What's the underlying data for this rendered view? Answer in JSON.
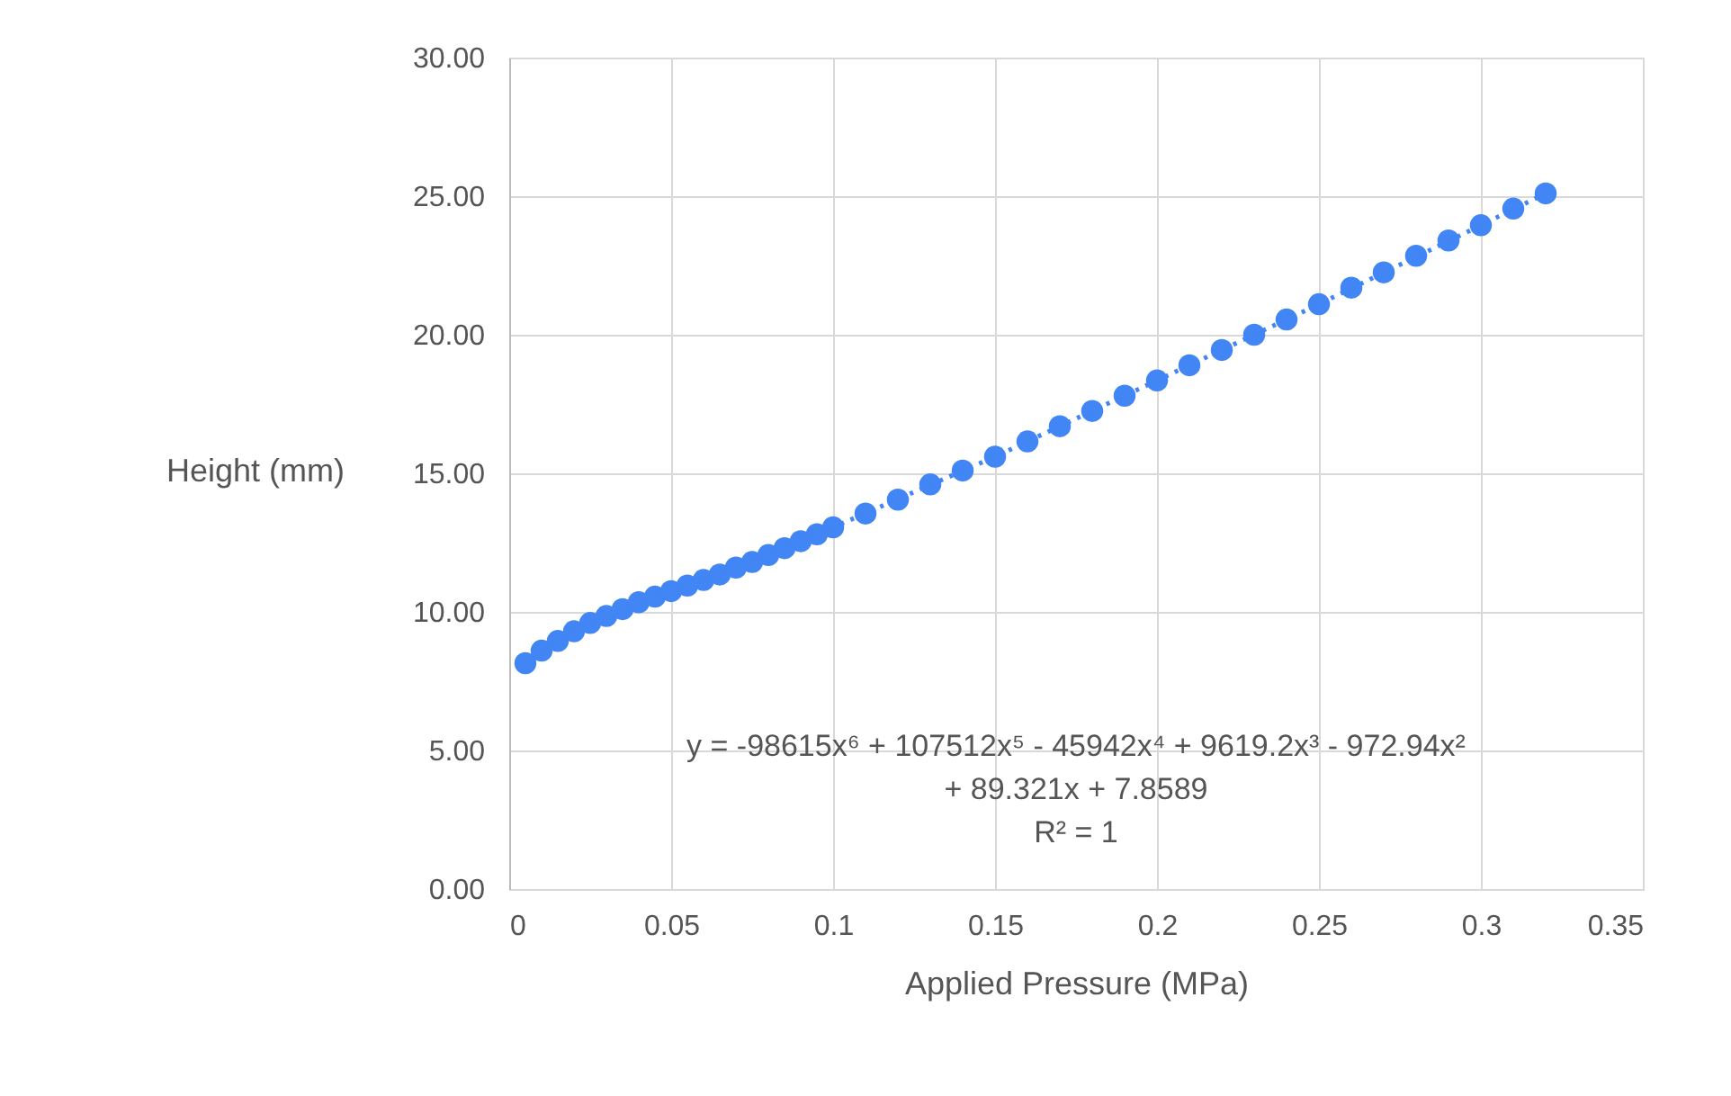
{
  "chart_data": {
    "type": "scatter",
    "xlabel": "Applied Pressure (MPa)",
    "ylabel": "Height (mm)",
    "xlim": [
      0,
      0.35
    ],
    "xticks": [
      0,
      0.05,
      0.1,
      0.15,
      0.2,
      0.25,
      0.3,
      0.35
    ],
    "ylim": [
      0,
      30
    ],
    "yticks": [
      {
        "value": 0,
        "label": "0.00"
      },
      {
        "value": 5,
        "label": "5.00"
      },
      {
        "value": 10,
        "label": "10.00"
      },
      {
        "value": 15,
        "label": "15.00"
      },
      {
        "value": 20,
        "label": "20.00"
      },
      {
        "value": 25,
        "label": "25.00"
      },
      {
        "value": 30,
        "label": "30.00"
      }
    ],
    "grid": true,
    "annotations": [
      "y = -98615x⁶ + 107512x⁵ - 45942x⁴ + 9619.2x³ - 972.94x²",
      "+ 89.321x + 7.8589",
      "R² = 1"
    ],
    "series": [
      {
        "marker": "circle",
        "color": "#4285f4",
        "x": [
          0.005,
          0.01,
          0.015,
          0.02,
          0.025,
          0.03,
          0.035,
          0.04,
          0.045,
          0.05,
          0.055,
          0.06,
          0.065,
          0.07,
          0.075,
          0.08,
          0.085,
          0.09,
          0.095,
          0.1,
          0.11,
          0.12,
          0.13,
          0.14,
          0.15,
          0.16,
          0.17,
          0.18,
          0.19,
          0.2,
          0.21,
          0.22,
          0.23,
          0.24,
          0.25,
          0.26,
          0.27,
          0.28,
          0.29,
          0.3,
          0.31,
          0.32
        ],
        "values": [
          8.15,
          8.6,
          8.95,
          9.3,
          9.6,
          9.85,
          10.1,
          10.35,
          10.55,
          10.75,
          10.95,
          11.15,
          11.35,
          11.6,
          11.8,
          12.05,
          12.3,
          12.55,
          12.8,
          13.05,
          13.55,
          14.05,
          14.6,
          15.1,
          15.6,
          16.15,
          16.7,
          17.25,
          17.8,
          18.35,
          18.9,
          19.45,
          20.0,
          20.55,
          21.1,
          21.7,
          22.25,
          22.85,
          23.4,
          23.95,
          24.55,
          25.1
        ]
      },
      {
        "type": "line",
        "line_style": "dotted",
        "color": "#4285f4",
        "x": [
          0.005,
          0.02,
          0.05,
          0.1,
          0.15,
          0.2,
          0.25,
          0.3,
          0.32
        ],
        "values": [
          8.15,
          9.3,
          10.75,
          13.05,
          15.6,
          18.35,
          21.1,
          23.95,
          25.1
        ]
      }
    ]
  }
}
